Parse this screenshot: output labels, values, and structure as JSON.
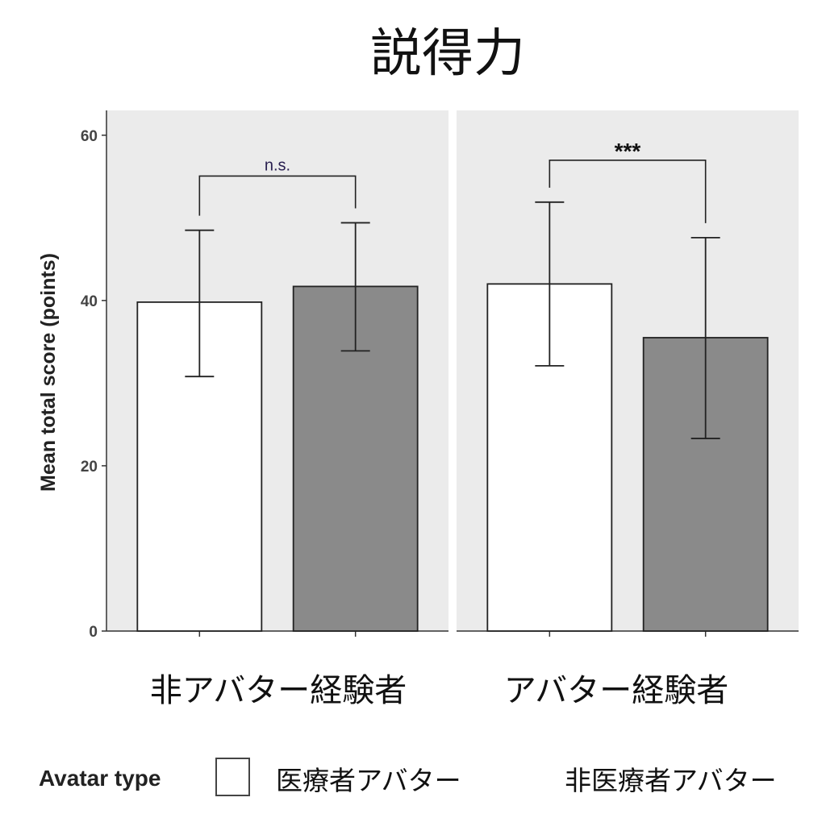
{
  "chart_data": {
    "type": "bar",
    "title": "説得力",
    "ylabel": "Mean total score (points)",
    "xlabel": "",
    "ylim": [
      0,
      63
    ],
    "yticks": [
      0,
      20,
      40,
      60
    ],
    "grid": false,
    "facets": [
      {
        "label": "非アバター経験者",
        "bars": [
          {
            "series": "医療者アバター",
            "mean": 39.8,
            "err_low": 30.8,
            "err_high": 48.5
          },
          {
            "series": "非医療者アバター",
            "mean": 41.7,
            "err_low": 33.9,
            "err_high": 49.4
          }
        ],
        "significance": "n.s."
      },
      {
        "label": "アバター経験者",
        "bars": [
          {
            "series": "医療者アバター",
            "mean": 42.0,
            "err_low": 32.1,
            "err_high": 51.9
          },
          {
            "series": "非医療者アバター",
            "mean": 35.5,
            "err_low": 23.3,
            "err_high": 47.6
          }
        ],
        "significance": "***"
      }
    ],
    "legend": {
      "title": "Avatar type",
      "placement": "bottom",
      "entries": [
        {
          "label": "医療者アバター",
          "color": "#ffffff"
        },
        {
          "label": "非医療者アバター",
          "color": "#8a8a8a"
        }
      ]
    },
    "colors": {
      "panel_background": "#ebebeb",
      "bar_outline": "#222222",
      "errorbar": "#222222"
    }
  }
}
